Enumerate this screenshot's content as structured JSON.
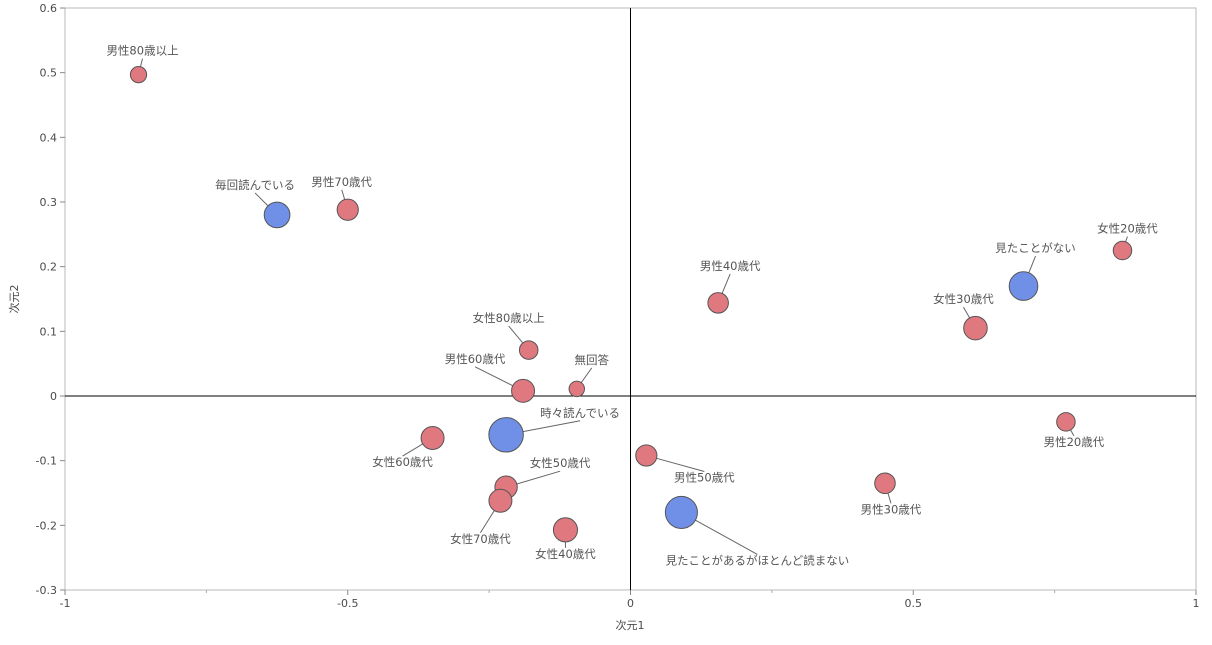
{
  "chart_data": {
    "type": "scatter",
    "title": "",
    "xlabel": "次元1",
    "ylabel": "次元2",
    "xlim": [
      -1,
      1
    ],
    "ylim": [
      -0.3,
      0.6
    ],
    "x_ticks": [
      "-1",
      "-0.5",
      "0",
      "0.5",
      "1"
    ],
    "y_ticks": [
      "-0.3",
      "-0.2",
      "-0.1",
      "0",
      "0.1",
      "0.2",
      "0.3",
      "0.4",
      "0.5",
      "0.6"
    ],
    "grid": false,
    "origin_lines": true,
    "colors": {
      "attribute": "#e07880",
      "response": "#7090e8",
      "outline": "#555555"
    },
    "series": [
      {
        "group": "attribute",
        "points": [
          {
            "label": "男性80歳以上",
            "x": -0.87,
            "y": 0.497,
            "size": 1
          },
          {
            "label": "男性70歳代",
            "x": -0.5,
            "y": 0.288,
            "size": 1.7
          },
          {
            "label": "女性80歳以上",
            "x": -0.18,
            "y": 0.071,
            "size": 1.3
          },
          {
            "label": "男性60歳代",
            "x": -0.19,
            "y": 0.008,
            "size": 2
          },
          {
            "label": "無回答",
            "x": -0.095,
            "y": 0.011,
            "size": 0.9
          },
          {
            "label": "女性60歳代",
            "x": -0.35,
            "y": -0.065,
            "size": 2
          },
          {
            "label": "女性50歳代",
            "x": -0.22,
            "y": -0.141,
            "size": 1.9
          },
          {
            "label": "女性70歳代",
            "x": -0.23,
            "y": -0.162,
            "size": 2
          },
          {
            "label": "女性40歳代",
            "x": -0.115,
            "y": -0.207,
            "size": 2.2
          },
          {
            "label": "男性50歳代",
            "x": 0.028,
            "y": -0.092,
            "size": 1.7
          },
          {
            "label": "男性40歳代",
            "x": 0.155,
            "y": 0.144,
            "size": 1.6
          },
          {
            "label": "女性30歳代",
            "x": 0.61,
            "y": 0.105,
            "size": 2.1
          },
          {
            "label": "女性20歳代",
            "x": 0.87,
            "y": 0.225,
            "size": 1.3
          },
          {
            "label": "男性20歳代",
            "x": 0.77,
            "y": -0.04,
            "size": 1.3
          },
          {
            "label": "男性30歳代",
            "x": 0.45,
            "y": -0.135,
            "size": 1.6
          }
        ]
      },
      {
        "group": "response",
        "points": [
          {
            "label": "毎回読んでいる",
            "x": -0.625,
            "y": 0.28,
            "size": 2.5
          },
          {
            "label": "時々読んでいる",
            "x": -0.22,
            "y": -0.06,
            "size": 4.5
          },
          {
            "label": "見たことがない",
            "x": 0.695,
            "y": 0.17,
            "size": 3.1
          },
          {
            "label": "見たことがあるがほとんど読まない",
            "x": 0.09,
            "y": -0.18,
            "size": 3.9
          }
        ]
      }
    ]
  }
}
